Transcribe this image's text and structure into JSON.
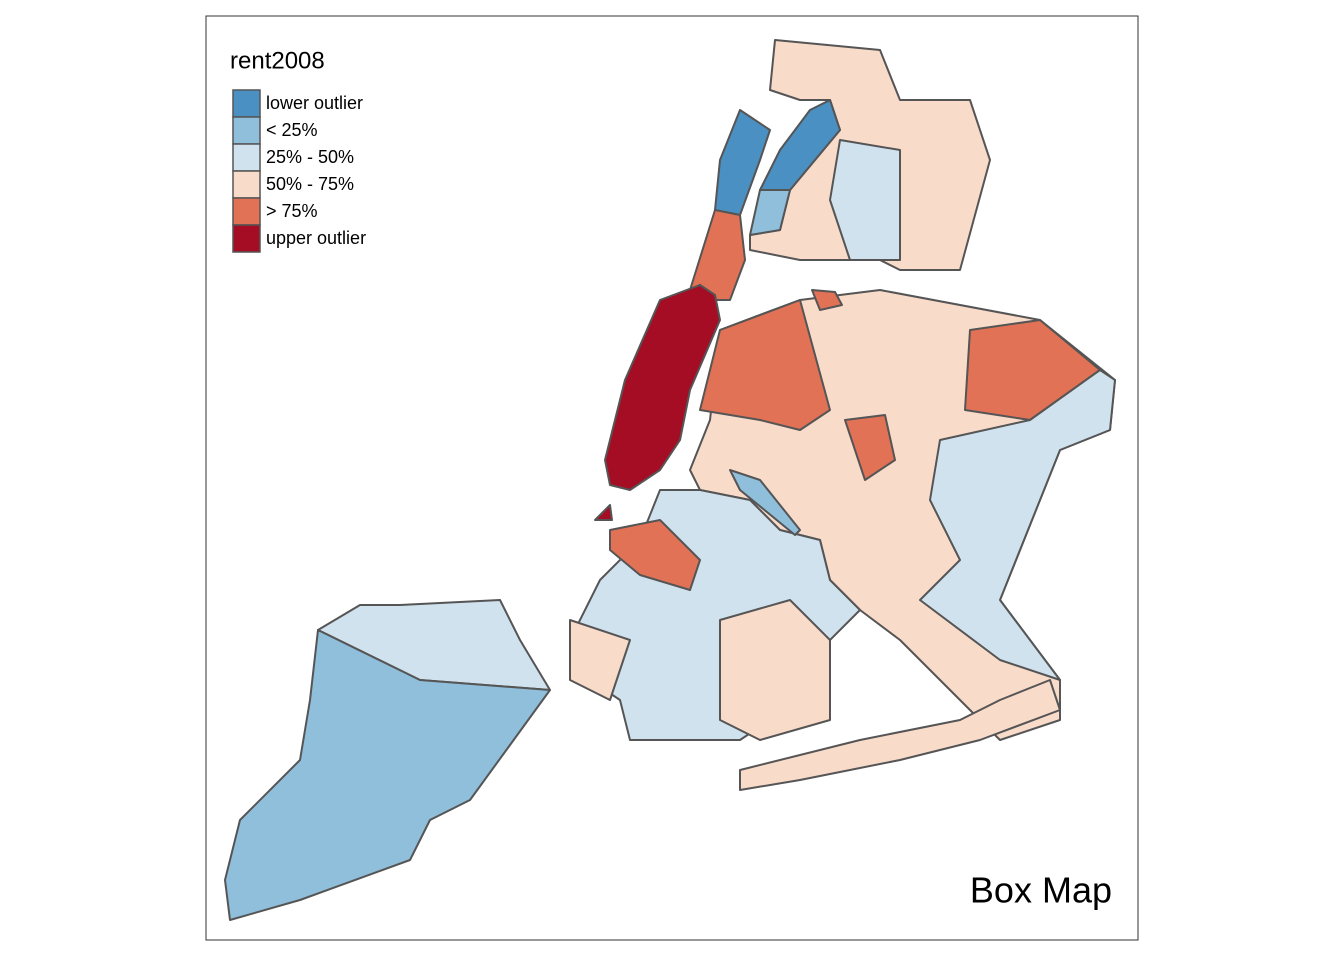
{
  "legend": {
    "title": "rent2008",
    "entries": [
      {
        "label": "lower outlier",
        "color": "#4a90c2"
      },
      {
        "label": "< 25%",
        "color": "#8fbfdb"
      },
      {
        "label": "25% - 50%",
        "color": "#d1e2ef"
      },
      {
        "label": "50% - 75%",
        "color": "#f9dbca"
      },
      {
        "label": "> 75%",
        "color": "#e17256"
      },
      {
        "label": "upper outlier",
        "color": "#a50d25"
      }
    ]
  },
  "title": "Box Map"
}
